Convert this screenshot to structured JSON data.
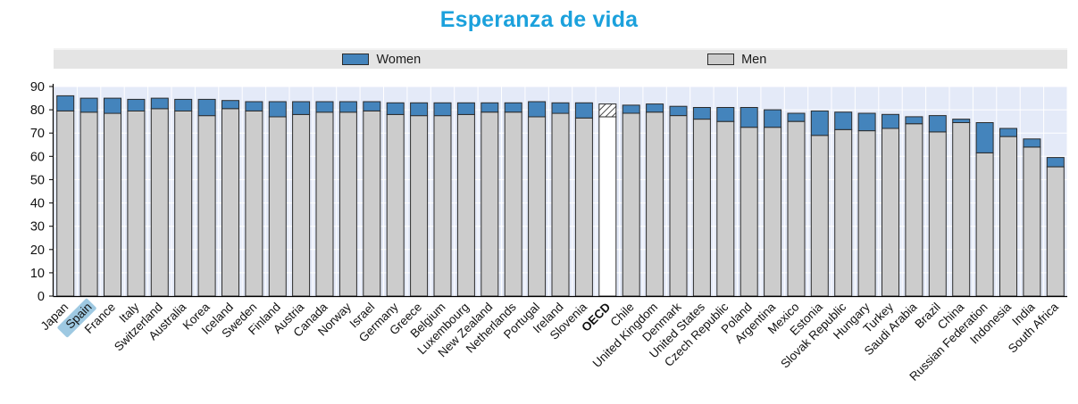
{
  "legend": {
    "women": "Women",
    "men": "Men"
  },
  "chart_data": {
    "type": "bar",
    "subtype": "gender-overlay-stacked",
    "title": "Esperanza de vida",
    "categories": [
      "Japan",
      "Spain",
      "France",
      "Italy",
      "Switzerland",
      "Australia",
      "Korea",
      "Iceland",
      "Sweden",
      "Finland",
      "Austria",
      "Canada",
      "Norway",
      "Israel",
      "Germany",
      "Greece",
      "Belgium",
      "Luxembourg",
      "New Zealand",
      "Netherlands",
      "Portugal",
      "Ireland",
      "Slovenia",
      "OECD",
      "Chile",
      "United Kingdom",
      "Denmark",
      "United States",
      "Czech Republic",
      "Poland",
      "Argentina",
      "Mexico",
      "Estonia",
      "Slovak Republic",
      "Hungary",
      "Turkey",
      "Saudi Arabia",
      "Brazil",
      "China",
      "Russian Federation",
      "Indonesia",
      "India",
      "South Africa"
    ],
    "series": [
      {
        "name": "Men",
        "role": "base-bar-height",
        "values": [
          79.5,
          79,
          78.5,
          79.5,
          80.5,
          79.5,
          77.5,
          80.5,
          79.5,
          77,
          78,
          79,
          79,
          79.5,
          78,
          77.5,
          77.5,
          78,
          79,
          79,
          77,
          78.5,
          76.5,
          77,
          78.5,
          79,
          77.5,
          76,
          75,
          72.5,
          72.5,
          75,
          69,
          71.5,
          71,
          72,
          74,
          70.5,
          74.5,
          61.5,
          68.5,
          64,
          55.5
        ]
      },
      {
        "name": "Women",
        "role": "total-bar-height",
        "values": [
          86,
          85,
          85,
          84.5,
          85,
          84.5,
          84.5,
          84,
          83.5,
          83.5,
          83.5,
          83.5,
          83.5,
          83.5,
          83,
          83,
          83,
          83,
          83,
          83,
          83.5,
          83,
          83,
          82.5,
          82,
          82.5,
          81.5,
          81,
          81,
          81,
          80,
          78.5,
          79.5,
          79,
          78.5,
          78,
          77,
          77.5,
          76,
          74.5,
          72,
          67.5,
          59.5
        ]
      }
    ],
    "ylim": [
      0,
      90
    ],
    "yticks": [
      0,
      10,
      20,
      30,
      40,
      50,
      60,
      70,
      80,
      90
    ],
    "xlabel": "",
    "ylabel": "",
    "grid": true,
    "legend_position": "top",
    "colors": {
      "women": "#4484bc",
      "men": "#cccccc",
      "bar_stroke": "#2b2b2b",
      "title": "#1ba1dc",
      "plot_bg": "#e4eaf8",
      "highlight": "#9ec9e2"
    },
    "notes": {
      "highlighted_category": "Spain",
      "hatched_category": "OECD",
      "reading": "Gray bar height = male life expectancy (years); blue cap extends bar to female life expectancy (years). OECD bar drawn white with hatched cap."
    }
  }
}
